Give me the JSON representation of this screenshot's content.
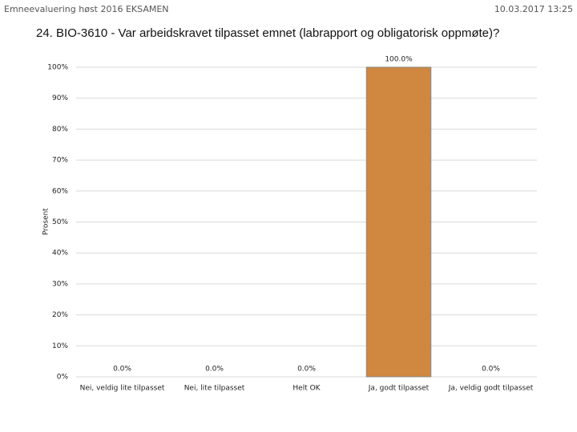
{
  "header": {
    "title": "Emneevaluering høst 2016 EKSAMEN",
    "timestamp": "10.03.2017 13:25"
  },
  "chart_data": {
    "type": "bar",
    "title": "24. BIO-3610 - Var arbeidskravet tilpasset emnet (labrapport og obligatorisk oppmøte)?",
    "y_label": "Prosent",
    "categories": [
      "Nei, veldig lite tilpasset",
      "Nei, lite tilpasset",
      "Helt OK",
      "Ja, godt tilpasset",
      "Ja, veldig godt tilpasset"
    ],
    "values": [
      0,
      0,
      0,
      100,
      0
    ],
    "value_labels": [
      "0.0%",
      "0.0%",
      "0.0%",
      "100.0%",
      "0.0%"
    ],
    "color": "#d08840",
    "ylim": [
      0,
      100
    ],
    "yticks": [
      {
        "value": 0,
        "label": "0%"
      },
      {
        "value": 10,
        "label": "10%"
      },
      {
        "value": 20,
        "label": "20%"
      },
      {
        "value": 30,
        "label": "30%"
      },
      {
        "value": 40,
        "label": "40%"
      },
      {
        "value": 50,
        "label": "50%"
      },
      {
        "value": 60,
        "label": "60%"
      },
      {
        "value": 70,
        "label": "70%"
      },
      {
        "value": 80,
        "label": "80%"
      },
      {
        "value": 90,
        "label": "90%"
      },
      {
        "value": 100,
        "label": "100%"
      }
    ],
    "grid": true
  }
}
